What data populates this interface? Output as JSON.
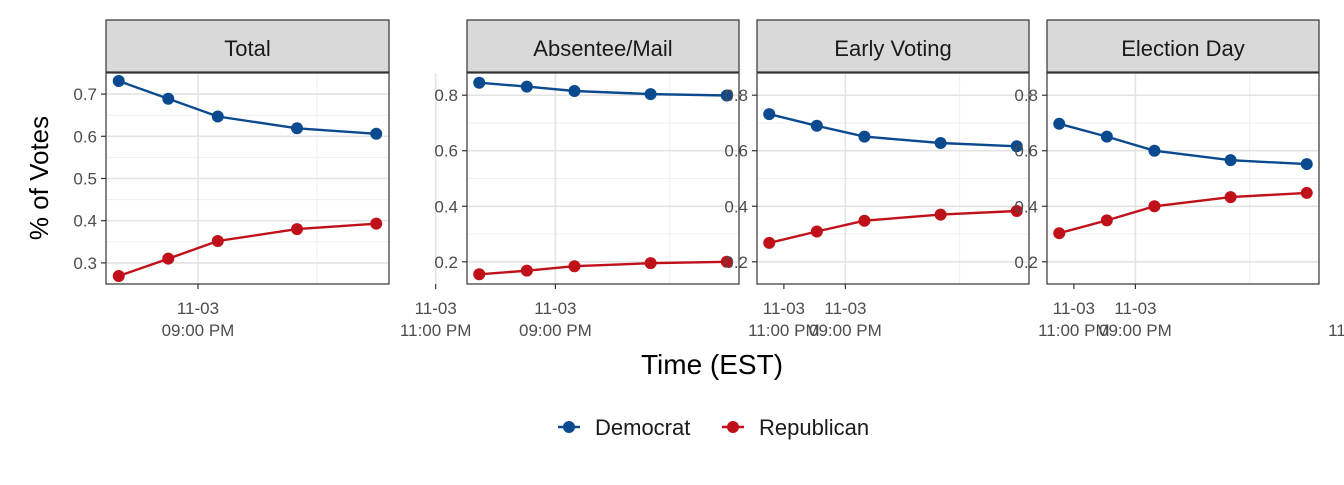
{
  "chart_data": {
    "type": "line",
    "ylabel": "% of Votes",
    "xlabel": "Time (EST)",
    "x_tick_labels": [
      {
        "date": "11-03",
        "time": "09:00 PM"
      },
      {
        "date": "11-03",
        "time": "11:00 PM"
      }
    ],
    "x": [
      "2020-11-03 20:20",
      "2020-11-03 20:45",
      "2020-11-03 21:10",
      "2020-11-03 21:50",
      "2020-11-03 22:30"
    ],
    "legend": {
      "position": "bottom"
    },
    "grid": true,
    "colors": {
      "Democrat": "#0b4a8f",
      "Republican": "#c0111a"
    },
    "panels": [
      {
        "title": "Total",
        "ylim": [
          0.25,
          0.75
        ],
        "yticks": [
          0.3,
          0.4,
          0.5,
          0.6,
          0.7
        ],
        "y_tick_labels": [
          "0.3",
          "0.4",
          "0.5",
          "0.6",
          "0.7"
        ],
        "series": [
          {
            "name": "Democrat",
            "values": [
              0.731,
              0.689,
              0.647,
              0.619,
              0.606
            ]
          },
          {
            "name": "Republican",
            "values": [
              0.269,
              0.31,
              0.352,
              0.38,
              0.393
            ]
          }
        ]
      },
      {
        "title": "Absentee/Mail",
        "ylim": [
          0.12,
          0.88
        ],
        "yticks": [
          0.2,
          0.4,
          0.6,
          0.8
        ],
        "y_tick_labels": [
          "0.2",
          "0.4",
          "0.6",
          "0.8"
        ],
        "series": [
          {
            "name": "Democrat",
            "values": [
              0.845,
              0.831,
              0.815,
              0.804,
              0.799
            ]
          },
          {
            "name": "Republican",
            "values": [
              0.155,
              0.168,
              0.184,
              0.195,
              0.2
            ]
          }
        ]
      },
      {
        "title": "Early Voting",
        "ylim": [
          0.12,
          0.88
        ],
        "yticks": [
          0.2,
          0.4,
          0.6,
          0.8
        ],
        "y_tick_labels": [
          "0.2",
          "0.4",
          "0.6",
          "0.8"
        ],
        "series": [
          {
            "name": "Democrat",
            "values": [
              0.732,
              0.69,
              0.651,
              0.628,
              0.616
            ]
          },
          {
            "name": "Republican",
            "values": [
              0.268,
              0.309,
              0.348,
              0.37,
              0.383
            ]
          }
        ]
      },
      {
        "title": "Election Day",
        "ylim": [
          0.12,
          0.88
        ],
        "yticks": [
          0.2,
          0.4,
          0.6,
          0.8
        ],
        "y_tick_labels": [
          "0.2",
          "0.4",
          "0.6",
          "0.8"
        ],
        "series": [
          {
            "name": "Democrat",
            "values": [
              0.697,
              0.651,
              0.6,
              0.566,
              0.552
            ]
          },
          {
            "name": "Republican",
            "values": [
              0.303,
              0.349,
              0.4,
              0.433,
              0.448
            ]
          }
        ]
      }
    ]
  },
  "legend_items": [
    {
      "label": "Democrat",
      "color": "#0b4a8f"
    },
    {
      "label": "Republican",
      "color": "#c0111a"
    }
  ]
}
